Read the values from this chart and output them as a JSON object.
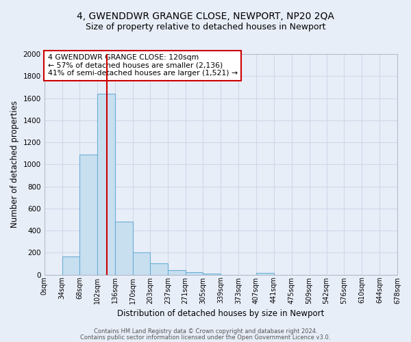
{
  "title1": "4, GWENDDWR GRANGE CLOSE, NEWPORT, NP20 2QA",
  "title2": "Size of property relative to detached houses in Newport",
  "xlabel": "Distribution of detached houses by size in Newport",
  "ylabel": "Number of detached properties",
  "bin_edges": [
    0,
    34,
    68,
    102,
    136,
    170,
    203,
    237,
    271,
    305,
    339,
    373,
    407,
    441,
    475,
    509,
    542,
    576,
    610,
    644,
    678
  ],
  "bar_heights": [
    0,
    165,
    1090,
    1640,
    480,
    200,
    100,
    40,
    20,
    10,
    0,
    0,
    15,
    0,
    0,
    0,
    0,
    0,
    0,
    0
  ],
  "bar_color": "#c8dff0",
  "bar_edge_color": "#6aaed6",
  "vline_x": 120,
  "vline_color": "#cc0000",
  "ylim": [
    0,
    2000
  ],
  "annotation_text": "4 GWENDDWR GRANGE CLOSE: 120sqm\n← 57% of detached houses are smaller (2,136)\n41% of semi-detached houses are larger (1,521) →",
  "annotation_box_color": "#ffffff",
  "annotation_box_edge": "#cc0000",
  "footnote1": "Contains HM Land Registry data © Crown copyright and database right 2024.",
  "footnote2": "Contains public sector information licensed under the Open Government Licence v3.0.",
  "bg_color": "#e8eef8",
  "grid_color": "#d0d8e8",
  "title_fontsize": 10,
  "subtitle_fontsize": 9,
  "axis_label_fontsize": 8.5,
  "tick_fontsize": 7,
  "tick_labels": [
    "0sqm",
    "34sqm",
    "68sqm",
    "102sqm",
    "136sqm",
    "170sqm",
    "203sqm",
    "237sqm",
    "271sqm",
    "305sqm",
    "339sqm",
    "373sqm",
    "407sqm",
    "441sqm",
    "475sqm",
    "509sqm",
    "542sqm",
    "576sqm",
    "610sqm",
    "644sqm",
    "678sqm"
  ]
}
